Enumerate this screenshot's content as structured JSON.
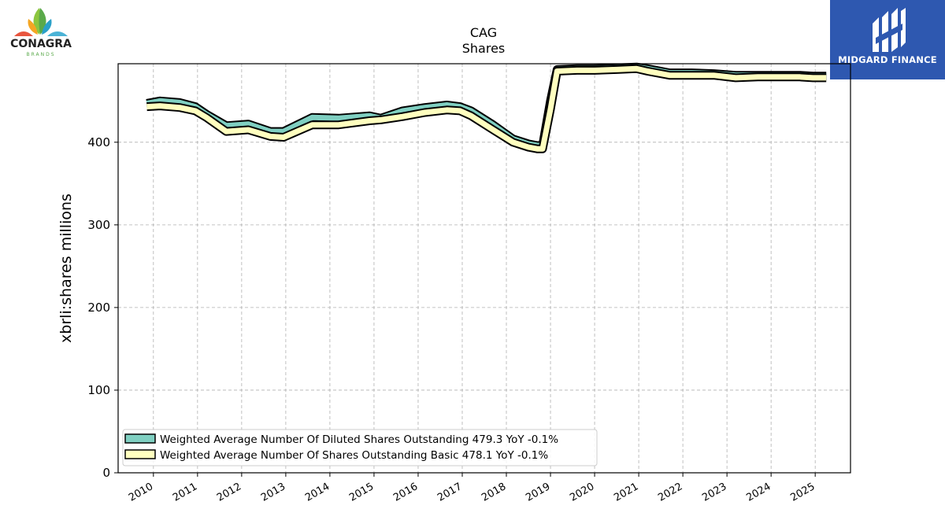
{
  "brands": {
    "left_logo_name": "CONAGRA",
    "left_logo_sub": "BRANDS",
    "right_logo_name": "MIDGARD FINANCE"
  },
  "chart_data": {
    "type": "area",
    "title": "CAG",
    "subtitle": "Shares",
    "ylabel": "xbrli:shares millions",
    "xlabel": "",
    "ylim": [
      0,
      495
    ],
    "xlim": [
      2009.2,
      2025.8
    ],
    "yticks": [
      0,
      100,
      200,
      300,
      400
    ],
    "xticks": [
      "2010",
      "2011",
      "2012",
      "2013",
      "2014",
      "2015",
      "2016",
      "2017",
      "2018",
      "2019",
      "2020",
      "2021",
      "2022",
      "2023",
      "2024",
      "2025"
    ],
    "grid": true,
    "legend_position": "lower-left",
    "series": [
      {
        "name": "Weighted Average Number Of Diluted Shares Outstanding",
        "legend_label": "Weighted Average Number Of Diluted Shares Outstanding  479.3 YoY -0.1%",
        "color": "#7fcfc1",
        "x": [
          2009.85,
          2010.15,
          2010.6,
          2010.95,
          2011.2,
          2011.65,
          2012.15,
          2012.65,
          2012.95,
          2013.6,
          2014.2,
          2014.9,
          2015.15,
          2015.65,
          2016.15,
          2016.65,
          2016.95,
          2017.2,
          2017.7,
          2018.15,
          2018.5,
          2018.7,
          2018.82,
          2019.0,
          2019.15,
          2019.6,
          2020.0,
          2020.5,
          2020.95,
          2021.2,
          2021.7,
          2022.2,
          2022.7,
          2023.2,
          2023.7,
          2024.2,
          2024.65,
          2024.95,
          2025.25
        ],
        "y": [
          447,
          450,
          448,
          443,
          434,
          420,
          422,
          413,
          413,
          430,
          429,
          432,
          429,
          438,
          442,
          445,
          443,
          438,
          421,
          404,
          398,
          396,
          396,
          450,
          488,
          489,
          489,
          490,
          491,
          489,
          484,
          484,
          483,
          481,
          481,
          481,
          481,
          480,
          480
        ]
      },
      {
        "name": "Weighted Average Number Of Shares Outstanding Basic",
        "legend_label": "Weighted Average Number Of Shares Outstanding Basic  478.1 YoY -0.1%",
        "color": "#ffffbf",
        "x": [
          2009.85,
          2010.15,
          2010.6,
          2010.95,
          2011.2,
          2011.65,
          2012.15,
          2012.65,
          2012.95,
          2013.6,
          2014.2,
          2014.9,
          2015.15,
          2015.65,
          2016.15,
          2016.65,
          2016.95,
          2017.2,
          2017.7,
          2018.15,
          2018.5,
          2018.7,
          2018.82,
          2019.0,
          2019.15,
          2019.6,
          2020.0,
          2020.5,
          2020.95,
          2021.2,
          2021.7,
          2022.2,
          2022.7,
          2023.2,
          2023.7,
          2024.2,
          2024.65,
          2024.95,
          2025.25
        ],
        "y": [
          443,
          444,
          442,
          438,
          430,
          413,
          415,
          407,
          406,
          421,
          421,
          426,
          427,
          431,
          436,
          439,
          438,
          432,
          415,
          400,
          394,
          392,
          392,
          440,
          486,
          487,
          487,
          488,
          489,
          486,
          481,
          481,
          481,
          478,
          479,
          479,
          479,
          478,
          478
        ]
      }
    ]
  }
}
